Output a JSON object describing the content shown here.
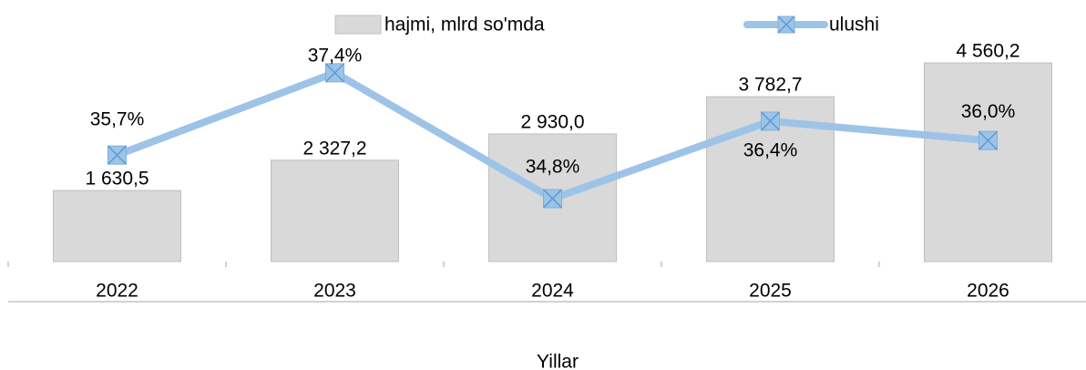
{
  "chart_data": {
    "type": "bar-line",
    "categories": [
      "2022",
      "2023",
      "2024",
      "2025",
      "2026"
    ],
    "x_label": "Yillar",
    "ylim": [
      0,
      5000
    ],
    "y2lim": [
      33.5,
      38
    ],
    "series": [
      {
        "name": "hajmi, mlrd so'mda",
        "type": "bar",
        "color": "#d9d9d9",
        "values": [
          1630.5,
          2327.2,
          2930.0,
          3782.7,
          4560.2
        ],
        "value_labels": [
          "1 630,5",
          "2 327,2",
          "2 930,0",
          "3 782,7",
          "4 560,2"
        ]
      },
      {
        "name": "ulushi",
        "type": "line",
        "axis": "y2",
        "color": "#9dc3e6",
        "values": [
          35.7,
          37.4,
          34.8,
          36.4,
          36.0
        ],
        "value_labels": [
          "35,7%",
          "37,4%",
          "34,8%",
          "36,4%",
          "36,0%"
        ]
      }
    ]
  }
}
